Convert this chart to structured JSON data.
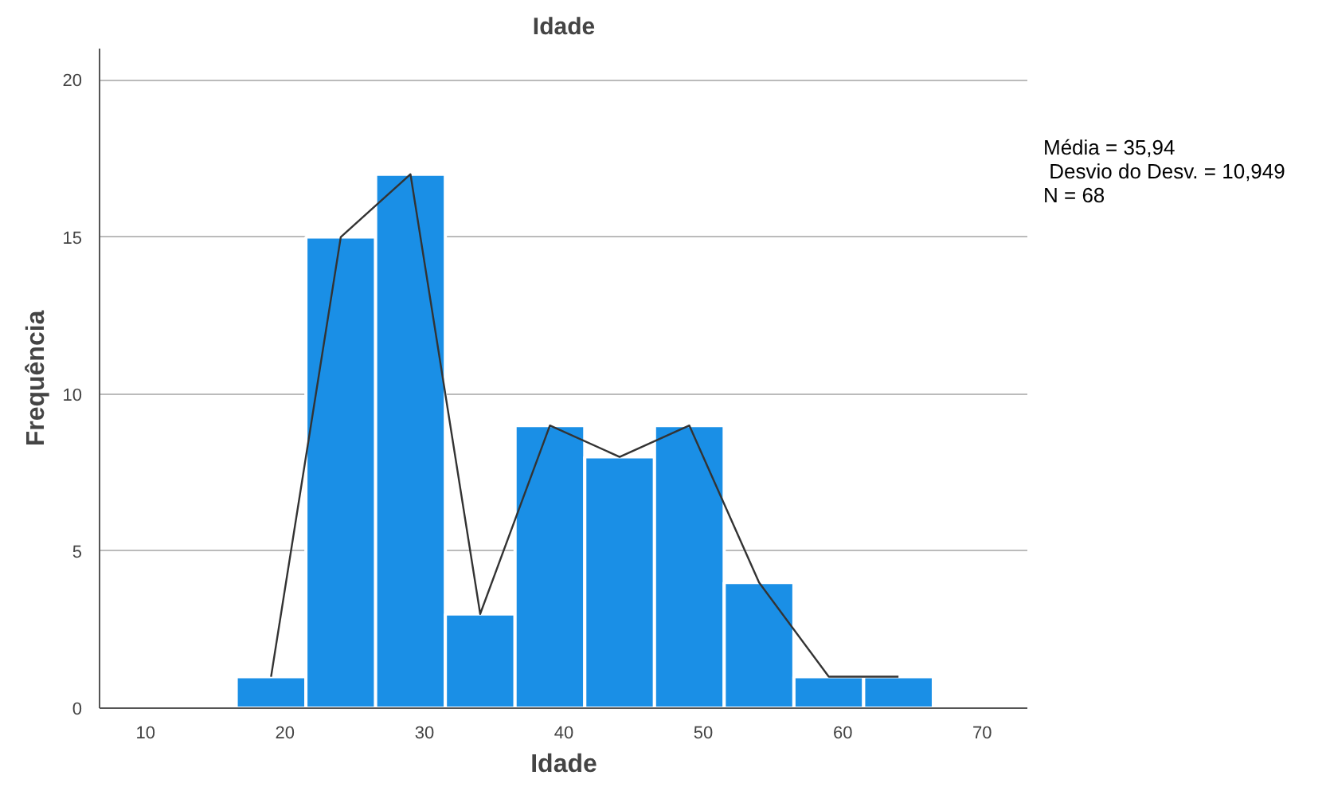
{
  "chart_data": {
    "type": "histogram",
    "title": "Idade",
    "xlabel": "Idade",
    "ylabel": "Frequência",
    "series": [
      {
        "color": "#1a8fe6",
        "bins": [
          16.5,
          21.5,
          26.5,
          31.5,
          36.5,
          41.5,
          46.5,
          51.5,
          56.5,
          61.5,
          66.5
        ],
        "values": [
          1,
          15,
          17,
          3,
          9,
          8,
          9,
          4,
          1,
          1
        ]
      },
      {
        "type": "line",
        "color": "#333333",
        "x": [
          19,
          24,
          29,
          34,
          39,
          44,
          49,
          54,
          59,
          64
        ],
        "values": [
          1,
          15,
          17,
          3,
          9,
          8,
          9,
          4,
          1,
          1
        ]
      }
    ],
    "xlim": [
      6.7,
      73.3
    ],
    "xticks": [
      10,
      20,
      30,
      40,
      50,
      60,
      70
    ],
    "ylim": [
      0,
      21
    ],
    "yticks": [
      0,
      5,
      10,
      15,
      20
    ],
    "grid": "y",
    "marker": "none",
    "line_style": "solid",
    "annotations": [
      "Média = 35,94",
      " Desvio do Desv. = 10,949",
      "N = 68"
    ]
  }
}
